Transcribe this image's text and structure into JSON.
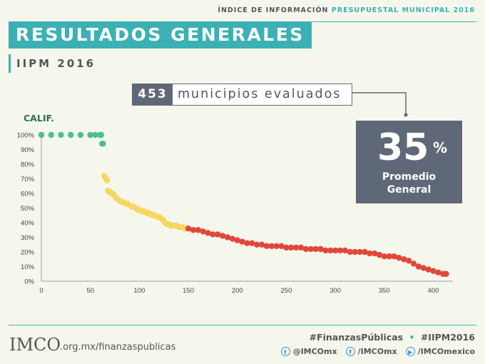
{
  "header": {
    "index_label": "ÍNDICE DE INFORMACIÓN",
    "index_highlight": "PRESUPUESTAL MUNICIPAL 2016",
    "title": "RESULTADOS GENERALES",
    "subtitle": "IIPM 2016"
  },
  "municipios": {
    "count": "453",
    "label": "municipios evaluados"
  },
  "promedio": {
    "value": "35",
    "unit": "%",
    "label_line1": "Promedio",
    "label_line2": "General"
  },
  "colors": {
    "teal": "#3bb1b5",
    "green": "#4cbf8e",
    "yellow": "#f6d763",
    "red": "#e2473b",
    "slate": "#5f6877"
  },
  "chart_data": {
    "type": "scatter",
    "title": "CALIF.",
    "xlim": [
      0,
      420
    ],
    "ylim": [
      0,
      100
    ],
    "x_ticks": [
      0,
      50,
      100,
      150,
      200,
      250,
      300,
      350,
      400
    ],
    "y_ticks": [
      "0%",
      "10%",
      "20%",
      "30%",
      "40%",
      "50%",
      "60%",
      "70%",
      "80%",
      "90%",
      "100%"
    ],
    "grid": false,
    "series": [
      {
        "color": "green",
        "points": [
          [
            0,
            100
          ],
          [
            10,
            100
          ],
          [
            20,
            100
          ],
          [
            30,
            100
          ],
          [
            40,
            100
          ],
          [
            50,
            100
          ],
          [
            55,
            100
          ],
          [
            60,
            100
          ],
          [
            61,
            100
          ],
          [
            62,
            94
          ],
          [
            63,
            94
          ]
        ]
      },
      {
        "color": "yellow",
        "points": [
          [
            64,
            72
          ],
          [
            65,
            71
          ],
          [
            66,
            70
          ],
          [
            67,
            69
          ],
          [
            68,
            62
          ],
          [
            69,
            61
          ],
          [
            70,
            61
          ],
          [
            72,
            60
          ],
          [
            74,
            59
          ],
          [
            76,
            57
          ],
          [
            78,
            56
          ],
          [
            80,
            55
          ],
          [
            82,
            54
          ],
          [
            84,
            54
          ],
          [
            86,
            53
          ],
          [
            88,
            53
          ],
          [
            90,
            52
          ],
          [
            92,
            51
          ],
          [
            94,
            51
          ],
          [
            96,
            50
          ],
          [
            98,
            49
          ],
          [
            100,
            49
          ],
          [
            102,
            48
          ],
          [
            104,
            48
          ],
          [
            106,
            47
          ],
          [
            108,
            47
          ],
          [
            110,
            46
          ],
          [
            112,
            46
          ],
          [
            114,
            45
          ],
          [
            116,
            45
          ],
          [
            118,
            44
          ],
          [
            120,
            44
          ],
          [
            122,
            43
          ],
          [
            124,
            42
          ],
          [
            126,
            40
          ],
          [
            128,
            39
          ],
          [
            130,
            39
          ],
          [
            132,
            38
          ],
          [
            134,
            38
          ],
          [
            136,
            38
          ],
          [
            138,
            38
          ],
          [
            140,
            37
          ],
          [
            142,
            37
          ],
          [
            144,
            37
          ],
          [
            146,
            36
          ],
          [
            148,
            36
          ]
        ]
      },
      {
        "color": "red",
        "points": [
          [
            150,
            36
          ],
          [
            155,
            35
          ],
          [
            160,
            35
          ],
          [
            165,
            34
          ],
          [
            170,
            33
          ],
          [
            175,
            32
          ],
          [
            180,
            32
          ],
          [
            185,
            31
          ],
          [
            190,
            30
          ],
          [
            195,
            29
          ],
          [
            200,
            28
          ],
          [
            205,
            27
          ],
          [
            210,
            26
          ],
          [
            215,
            26
          ],
          [
            220,
            25
          ],
          [
            225,
            25
          ],
          [
            230,
            24
          ],
          [
            235,
            24
          ],
          [
            240,
            24
          ],
          [
            245,
            24
          ],
          [
            250,
            23
          ],
          [
            255,
            23
          ],
          [
            260,
            23
          ],
          [
            265,
            23
          ],
          [
            270,
            22
          ],
          [
            275,
            22
          ],
          [
            280,
            22
          ],
          [
            285,
            22
          ],
          [
            290,
            21
          ],
          [
            295,
            21
          ],
          [
            300,
            21
          ],
          [
            305,
            21
          ],
          [
            310,
            21
          ],
          [
            315,
            20
          ],
          [
            320,
            20
          ],
          [
            325,
            20
          ],
          [
            330,
            20
          ],
          [
            335,
            19
          ],
          [
            340,
            19
          ],
          [
            345,
            18
          ],
          [
            350,
            17
          ],
          [
            355,
            17
          ],
          [
            360,
            17
          ],
          [
            365,
            16
          ],
          [
            370,
            15
          ],
          [
            375,
            14
          ],
          [
            380,
            12
          ],
          [
            385,
            10
          ],
          [
            390,
            9
          ],
          [
            395,
            8
          ],
          [
            400,
            7
          ],
          [
            405,
            6
          ],
          [
            410,
            5
          ],
          [
            413,
            5
          ]
        ]
      }
    ]
  },
  "footer": {
    "logo": "IMCO",
    "url": ".org.mx/finanzaspublicas",
    "hashtag1": "#FinanzasPúblicas",
    "sep": "•",
    "hashtag2": "#IIPM2016",
    "twitter": "@IMCOmx",
    "facebook": "/IMCOmx",
    "youtube": "/IMCOmexico",
    "twitter_icon": "twitter-icon",
    "facebook_icon": "facebook-icon",
    "youtube_icon": "youtube-icon"
  }
}
